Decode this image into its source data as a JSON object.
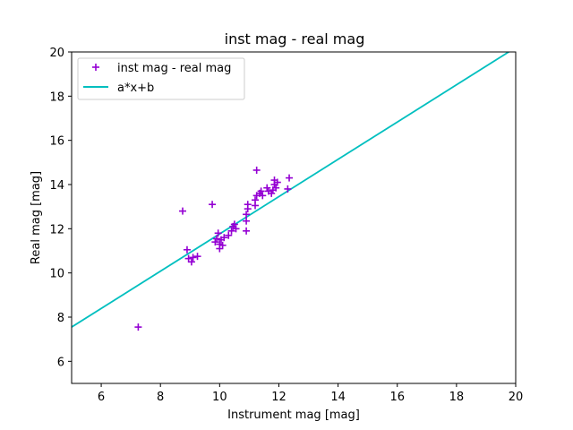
{
  "chart_data": {
    "type": "scatter",
    "title": "inst mag - real mag",
    "xlabel": "Instrument mag [mag]",
    "ylabel": "Real mag [mag]",
    "xlim": [
      5,
      20
    ],
    "ylim": [
      5,
      20
    ],
    "xticks": [
      "6",
      "8",
      "10",
      "12",
      "14",
      "16",
      "18",
      "20"
    ],
    "yticks": [
      "6",
      "8",
      "10",
      "12",
      "14",
      "16",
      "18",
      "20"
    ],
    "grid": false,
    "legend_position": "top-left",
    "series": [
      {
        "name": "inst mag - real mag",
        "kind": "scatter",
        "marker": "+",
        "color": "#9400d3",
        "points": [
          [
            7.25,
            7.55
          ],
          [
            8.75,
            12.8
          ],
          [
            8.9,
            11.05
          ],
          [
            8.95,
            10.65
          ],
          [
            9.05,
            10.5
          ],
          [
            9.1,
            10.7
          ],
          [
            9.25,
            10.75
          ],
          [
            9.75,
            13.1
          ],
          [
            9.85,
            11.4
          ],
          [
            9.9,
            11.55
          ],
          [
            9.95,
            11.8
          ],
          [
            10.0,
            11.3
          ],
          [
            10.0,
            11.1
          ],
          [
            10.05,
            11.5
          ],
          [
            10.1,
            11.25
          ],
          [
            10.15,
            11.6
          ],
          [
            10.3,
            11.7
          ],
          [
            10.4,
            11.9
          ],
          [
            10.45,
            12.1
          ],
          [
            10.5,
            12.2
          ],
          [
            10.55,
            12.0
          ],
          [
            10.9,
            11.9
          ],
          [
            10.9,
            12.35
          ],
          [
            10.9,
            12.65
          ],
          [
            10.95,
            12.9
          ],
          [
            10.95,
            13.1
          ],
          [
            11.2,
            13.05
          ],
          [
            11.2,
            13.3
          ],
          [
            11.25,
            13.5
          ],
          [
            11.25,
            14.65
          ],
          [
            11.35,
            13.6
          ],
          [
            11.4,
            13.7
          ],
          [
            11.45,
            13.5
          ],
          [
            11.6,
            13.85
          ],
          [
            11.65,
            13.7
          ],
          [
            11.75,
            13.6
          ],
          [
            11.8,
            13.75
          ],
          [
            11.85,
            14.0
          ],
          [
            11.85,
            14.2
          ],
          [
            11.9,
            13.85
          ],
          [
            11.95,
            14.1
          ],
          [
            12.3,
            13.8
          ],
          [
            12.35,
            14.3
          ]
        ]
      },
      {
        "name": "a*x+b",
        "kind": "line",
        "color": "#00bfbf",
        "points": [
          [
            5,
            7.55
          ],
          [
            20,
            20.2
          ]
        ]
      }
    ]
  }
}
